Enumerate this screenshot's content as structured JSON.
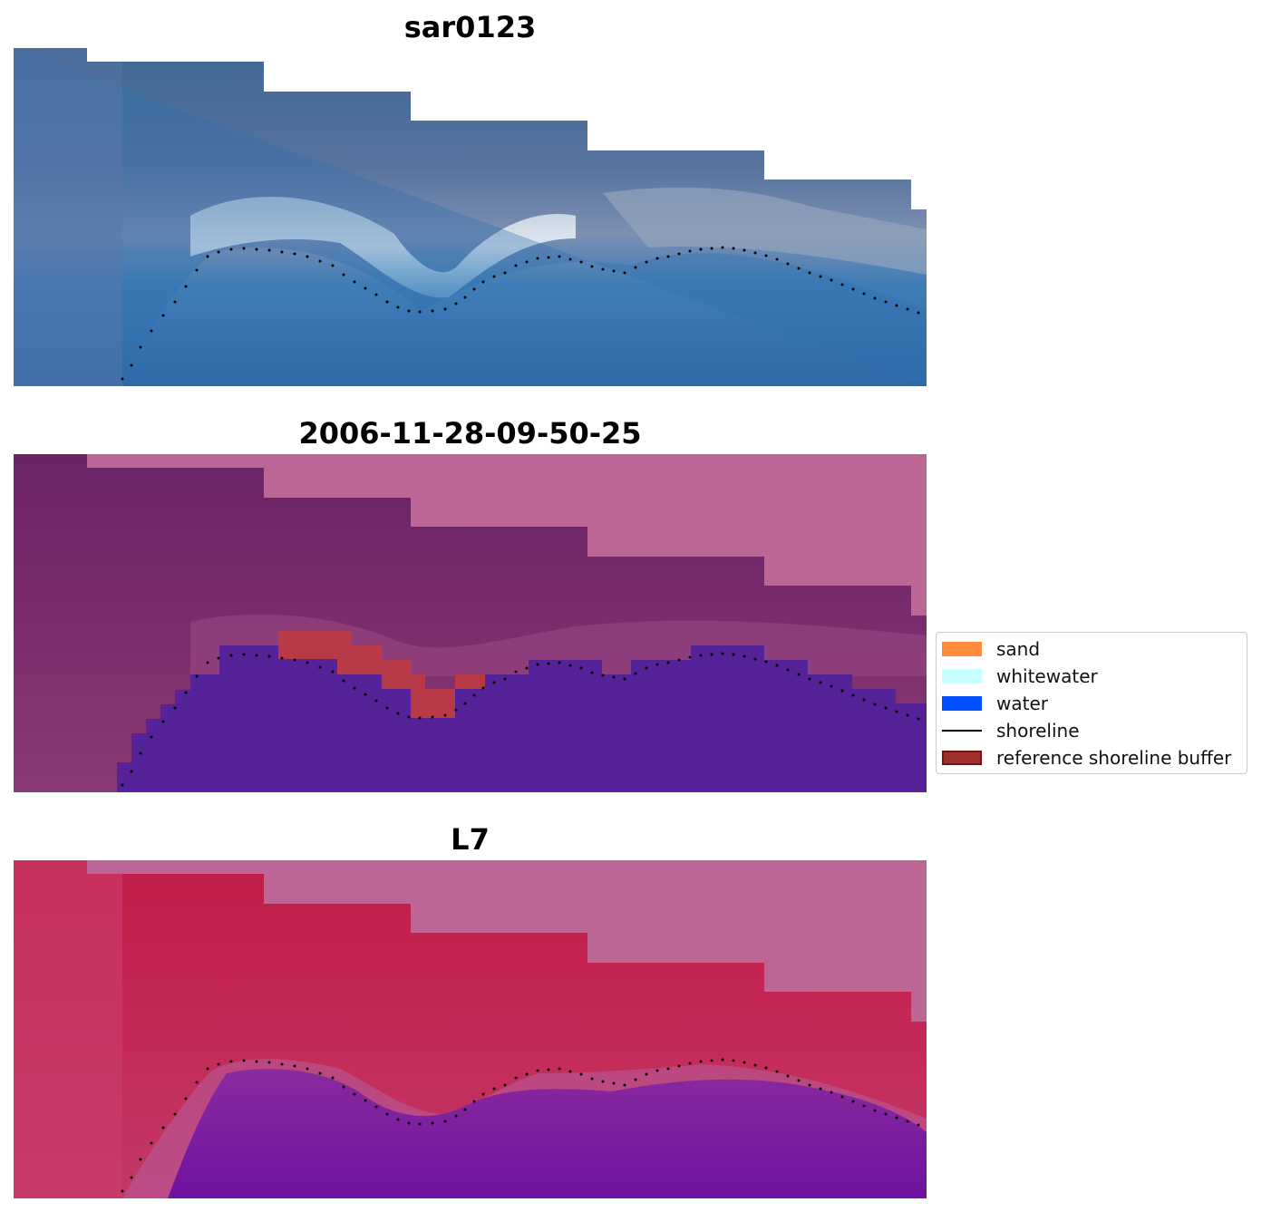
{
  "panels": [
    {
      "id": "rgb",
      "title": "sar0123"
    },
    {
      "id": "classified",
      "title": "2006-11-28-09-50-25"
    },
    {
      "id": "index",
      "title": "L7"
    }
  ],
  "legend": {
    "items": [
      {
        "label": "sand",
        "kind": "patch",
        "color": "#ff8c3a"
      },
      {
        "label": "whitewater",
        "kind": "patch",
        "color": "#c8ffff"
      },
      {
        "label": "water",
        "kind": "patch",
        "color": "#0050ff"
      },
      {
        "label": "shoreline",
        "kind": "line",
        "color": "#000000"
      },
      {
        "label": "reference shoreline buffer",
        "kind": "patch",
        "color": "#a03030",
        "edge": "#7a1010"
      }
    ]
  },
  "colors": {
    "nodata": "#bd6695",
    "shoreline_dots": "#000000",
    "water_class": "#55229a",
    "buffer_overlap": "#b83a46"
  }
}
